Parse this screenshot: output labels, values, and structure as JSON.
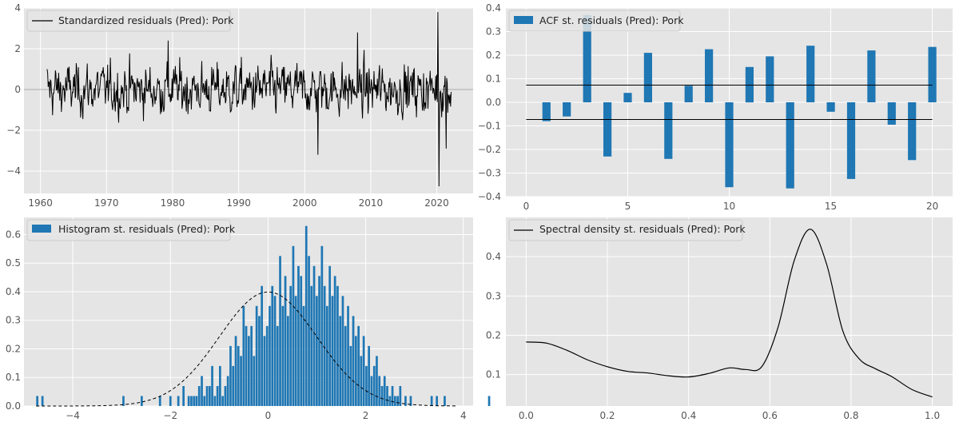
{
  "chart_data": [
    {
      "type": "line",
      "legend": "Standardized residuals (Pred): Pork",
      "legend_position": "top-left",
      "grid": true,
      "xlim": [
        1957.5,
        2025.5
      ],
      "ylim": [
        -5.1,
        4.0
      ],
      "xticks": [
        1960,
        1970,
        1980,
        1990,
        2000,
        2010,
        2020
      ],
      "yticks": [
        -4,
        -2,
        0,
        2,
        4
      ],
      "reference_line_y": 0,
      "x_start": 1961.0,
      "x_step_months": 1,
      "n_points": 735,
      "features": [
        {
          "x": 1961.0,
          "y": 1.0
        },
        {
          "x": 1979.3,
          "y": 2.4
        },
        {
          "x": 2002.0,
          "y": -3.2
        },
        {
          "x": 2008.0,
          "y": 2.8
        },
        {
          "x": 2020.2,
          "y": 3.8
        },
        {
          "x": 2020.3,
          "y": -4.75
        },
        {
          "x": 2021.4,
          "y": -2.9
        }
      ],
      "line_color": "#000000"
    },
    {
      "type": "bar",
      "legend": "ACF st. residuals (Pred): Pork",
      "legend_position": "top-left",
      "grid": true,
      "xlim": [
        -1,
        21
      ],
      "ylim": [
        -0.4,
        0.4
      ],
      "xticks": [
        0,
        5,
        10,
        15,
        20
      ],
      "yticks": [
        -0.4,
        -0.3,
        -0.2,
        -0.1,
        0.0,
        0.1,
        0.2,
        0.3,
        0.4
      ],
      "lags": [
        1,
        2,
        3,
        4,
        5,
        6,
        7,
        8,
        9,
        10,
        11,
        12,
        13,
        14,
        15,
        16,
        17,
        18,
        19,
        20
      ],
      "values": [
        -0.08,
        -0.06,
        0.37,
        -0.23,
        0.04,
        0.21,
        -0.24,
        0.07,
        0.225,
        -0.36,
        0.15,
        0.195,
        -0.365,
        0.24,
        -0.04,
        -0.325,
        0.22,
        -0.095,
        -0.245,
        0.235
      ],
      "confidence_band": [
        -0.073,
        0.073
      ],
      "bar_color": "#1f77b4"
    },
    {
      "type": "bar",
      "legend": "Histogram st. residuals (Pred): Pork",
      "legend_position": "top-left",
      "grid": true,
      "xlim": [
        -5.0,
        4.2
      ],
      "ylim": [
        0,
        0.66
      ],
      "xticks": [
        -4,
        -2,
        0,
        2,
        4
      ],
      "yticks": [
        0.0,
        0.1,
        0.2,
        0.3,
        0.4,
        0.5,
        0.6
      ],
      "bin_start": -4.75,
      "bin_width": 0.0535,
      "values": [
        0.035,
        0,
        0.035,
        0,
        0,
        0,
        0,
        0,
        0,
        0,
        0,
        0,
        0,
        0,
        0,
        0,
        0,
        0,
        0,
        0,
        0,
        0,
        0,
        0,
        0,
        0,
        0,
        0,
        0,
        0,
        0,
        0,
        0,
        0.035,
        0,
        0,
        0,
        0,
        0,
        0,
        0.035,
        0,
        0,
        0,
        0,
        0,
        0,
        0.035,
        0,
        0,
        0,
        0.035,
        0,
        0,
        0.035,
        0,
        0.07,
        0,
        0.035,
        0.035,
        0.035,
        0.035,
        0.07,
        0.105,
        0.035,
        0.07,
        0.07,
        0.14,
        0.035,
        0.07,
        0.14,
        0.035,
        0.07,
        0.105,
        0.21,
        0.14,
        0.245,
        0.21,
        0.175,
        0.35,
        0.28,
        0.245,
        0.28,
        0.175,
        0.35,
        0.315,
        0.42,
        0.245,
        0.28,
        0.35,
        0.42,
        0.385,
        0.28,
        0.525,
        0.35,
        0.455,
        0.315,
        0.42,
        0.56,
        0.385,
        0.49,
        0.455,
        0.35,
        0.63,
        0.525,
        0.42,
        0.49,
        0.385,
        0.455,
        0.56,
        0.42,
        0.35,
        0.49,
        0.385,
        0.455,
        0.42,
        0.315,
        0.385,
        0.28,
        0.35,
        0.21,
        0.315,
        0.245,
        0.28,
        0.175,
        0.245,
        0.14,
        0.21,
        0.105,
        0.14,
        0.175,
        0.105,
        0.07,
        0.105,
        0.07,
        0.035,
        0.07,
        0.035,
        0.035,
        0.07,
        0,
        0.035,
        0,
        0.035,
        0,
        0,
        0,
        0,
        0,
        0,
        0,
        0.035,
        0,
        0.035,
        0,
        0,
        0.035,
        0,
        0,
        0,
        0,
        0,
        0,
        0,
        0,
        0,
        0,
        0,
        0,
        0,
        0,
        0,
        0,
        0.035
      ],
      "overlay": "standard normal density (dashed)",
      "bar_color": "#1f77b4"
    },
    {
      "type": "line",
      "legend": "Spectral density st. residuals (Pred): Pork",
      "legend_position": "top-left",
      "grid": true,
      "xlim": [
        -0.05,
        1.05
      ],
      "ylim": [
        0.02,
        0.5
      ],
      "xticks": [
        0.0,
        0.2,
        0.4,
        0.6,
        0.8,
        1.0
      ],
      "yticks": [
        0.1,
        0.2,
        0.3,
        0.4
      ],
      "x": [
        0.0,
        0.05,
        0.1,
        0.15,
        0.2,
        0.25,
        0.3,
        0.35,
        0.4,
        0.45,
        0.5,
        0.54,
        0.58,
        0.62,
        0.66,
        0.7,
        0.74,
        0.78,
        0.82,
        0.86,
        0.9,
        0.95,
        1.0
      ],
      "y": [
        0.183,
        0.18,
        0.162,
        0.138,
        0.12,
        0.108,
        0.104,
        0.097,
        0.094,
        0.103,
        0.117,
        0.113,
        0.12,
        0.22,
        0.39,
        0.47,
        0.38,
        0.21,
        0.14,
        0.115,
        0.095,
        0.062,
        0.043
      ],
      "line_color": "#000000"
    }
  ]
}
